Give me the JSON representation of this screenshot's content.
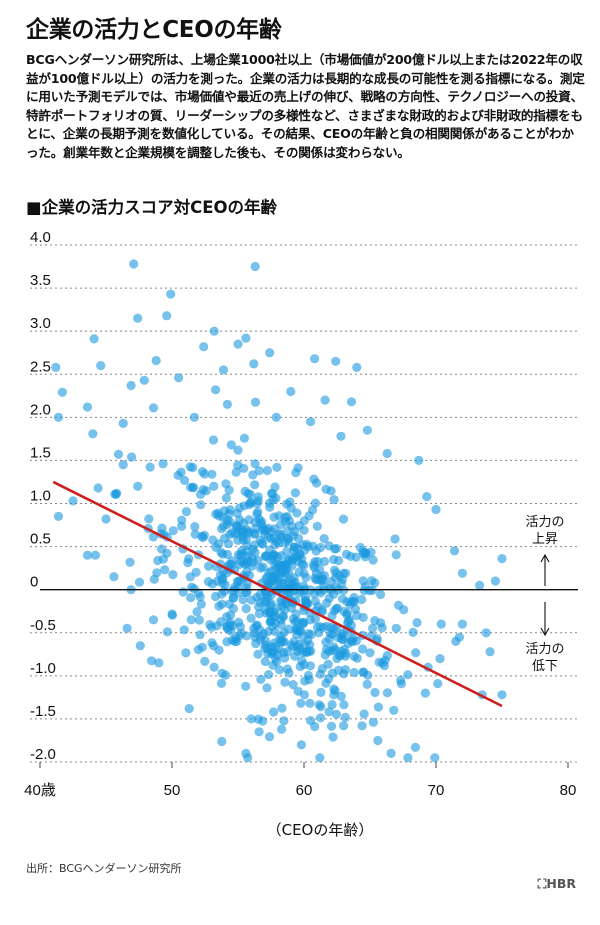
{
  "header": {
    "title": "企業の活力とCEOの年齢",
    "intro": "BCGヘンダーソン研究所は、上場企業1000社以上（市場価値が200億ドル以上または2022年の収益が100億ドル以上）の活力を測った。企業の活力は長期的な成長の可能性を測る指標になる。測定に用いた予測モデルでは、市場価値や最近の売上げの伸び、戦略の方向性、テクノロジーへの投資、特許ポートフォリオの質、リーダーシップの多様性など、さまざまな財政的および非財政的指標をもとに、企業の長期予測を数値化している。その結果、CEOの年齢と負の相関関係があることがわかった。創業年数と企業規模を調整した後も、その関係は変わらない。"
  },
  "chart_title": "■企業の活力スコア対CEOの年齢",
  "source": "出所：BCGヘンダーソン研究所",
  "logo": "HBR",
  "colors": {
    "dots": "#1a9ae0",
    "trend": "#cc1f1f",
    "grid": "#888888",
    "zero_line": "#111111"
  },
  "chart_data": {
    "type": "scatter",
    "title": "企業の活力スコア対CEOの年齢",
    "xlabel": "（CEOの年齢）",
    "ylabel": "",
    "xlim": [
      40,
      80
    ],
    "ylim": [
      -2.0,
      4.0
    ],
    "x_ticks": [
      {
        "value": 40,
        "label": "40歳"
      },
      {
        "value": 50,
        "label": "50"
      },
      {
        "value": 60,
        "label": "60"
      },
      {
        "value": 70,
        "label": "70"
      },
      {
        "value": 80,
        "label": "80"
      }
    ],
    "y_ticks": [
      {
        "value": 4.0,
        "label": "4.0"
      },
      {
        "value": 3.5,
        "label": "3.5"
      },
      {
        "value": 3.0,
        "label": "3.0"
      },
      {
        "value": 2.5,
        "label": "2.5"
      },
      {
        "value": 2.0,
        "label": "2.0"
      },
      {
        "value": 1.5,
        "label": "1.5"
      },
      {
        "value": 1.0,
        "label": "1.0"
      },
      {
        "value": 0.5,
        "label": "0.5"
      },
      {
        "value": 0,
        "label": "0"
      },
      {
        "value": -0.5,
        "label": "-0.5"
      },
      {
        "value": -1.0,
        "label": "-1.0"
      },
      {
        "value": -1.5,
        "label": "-1.5"
      },
      {
        "value": -2.0,
        "label": "-2.0"
      }
    ],
    "grid": "horizontal-dashed",
    "trend_line": {
      "x": [
        41,
        75
      ],
      "y": [
        1.25,
        -1.35
      ]
    },
    "annotations": {
      "up": [
        "活力の",
        "上昇"
      ],
      "down": [
        "活力の",
        "低下"
      ]
    },
    "points": [
      [
        47.1,
        3.78
      ],
      [
        56.3,
        3.75
      ],
      [
        49.9,
        3.43
      ],
      [
        47.4,
        3.15
      ],
      [
        49.6,
        3.18
      ],
      [
        44.1,
        2.91
      ],
      [
        53.2,
        3.0
      ],
      [
        55.6,
        2.92
      ],
      [
        41.2,
        2.58
      ],
      [
        44.6,
        2.6
      ],
      [
        52.4,
        2.82
      ],
      [
        55.0,
        2.85
      ],
      [
        57.4,
        2.75
      ],
      [
        60.8,
        2.68
      ],
      [
        62.4,
        2.65
      ],
      [
        64.0,
        2.58
      ],
      [
        41.7,
        2.29
      ],
      [
        43.6,
        2.12
      ],
      [
        46.9,
        2.37
      ],
      [
        48.8,
        2.66
      ],
      [
        50.5,
        2.46
      ],
      [
        53.9,
        2.55
      ],
      [
        56.2,
        2.62
      ],
      [
        41.4,
        2.0
      ],
      [
        47.9,
        2.43
      ],
      [
        46.3,
        1.93
      ],
      [
        55.0,
        1.62
      ],
      [
        53.3,
        2.32
      ],
      [
        59.0,
        2.3
      ],
      [
        61.6,
        2.2
      ],
      [
        63.6,
        2.18
      ],
      [
        48.6,
        2.11
      ],
      [
        51.7,
        2.0
      ],
      [
        54.2,
        2.15
      ],
      [
        57.9,
        2.0
      ],
      [
        60.5,
        1.95
      ],
      [
        62.8,
        1.78
      ],
      [
        64.8,
        1.85
      ],
      [
        66.3,
        1.58
      ],
      [
        68.7,
        1.5
      ],
      [
        69.3,
        1.08
      ],
      [
        70.0,
        0.93
      ],
      [
        71.4,
        0.45
      ],
      [
        72.0,
        0.19
      ],
      [
        73.3,
        0.05
      ],
      [
        74.5,
        0.1
      ],
      [
        75.0,
        0.36
      ],
      [
        72.0,
        -0.4
      ],
      [
        73.8,
        -0.5
      ],
      [
        74.1,
        -0.72
      ],
      [
        70.3,
        -0.8
      ],
      [
        69.4,
        -0.9
      ],
      [
        69.2,
        -1.2
      ],
      [
        73.5,
        -1.22
      ],
      [
        75.0,
        -1.22
      ],
      [
        70.4,
        -0.4
      ],
      [
        71.5,
        -0.6
      ],
      [
        65.6,
        -1.75
      ],
      [
        66.6,
        -1.9
      ],
      [
        55.6,
        -1.9
      ],
      [
        59.8,
        -1.8
      ],
      [
        62.2,
        -1.71
      ],
      [
        61.2,
        -1.95
      ],
      [
        60.5,
        -1.52
      ],
      [
        58.3,
        -1.62
      ],
      [
        56.6,
        -1.65
      ],
      [
        51.3,
        -1.38
      ],
      [
        46.6,
        -0.45
      ],
      [
        46.9,
        0.0
      ],
      [
        45.6,
        0.15
      ],
      [
        45.0,
        0.82
      ],
      [
        44.2,
        0.4
      ],
      [
        41.4,
        0.85
      ],
      [
        43.6,
        0.4
      ],
      [
        44.4,
        1.18
      ],
      [
        42.5,
        1.03
      ],
      [
        46.3,
        1.45
      ],
      [
        45.8,
        1.12
      ],
      [
        47.4,
        1.2
      ],
      [
        48.2,
        0.71
      ],
      [
        48.6,
        -0.35
      ],
      [
        49.0,
        -0.85
      ],
      [
        47.6,
        -0.65
      ],
      [
        53.2,
        -0.9
      ],
      [
        66.8,
        -1.4
      ],
      [
        64.4,
        -1.58
      ],
      [
        63.0,
        -1.58
      ],
      [
        57.7,
        -1.42
      ],
      [
        57.2,
        -1.14
      ],
      [
        56.0,
        -1.5
      ]
    ],
    "cloud": {
      "count": 760,
      "x_mean": 58.2,
      "x_sd": 4.3,
      "slope": -0.077,
      "residual_sd": 0.62
    }
  }
}
